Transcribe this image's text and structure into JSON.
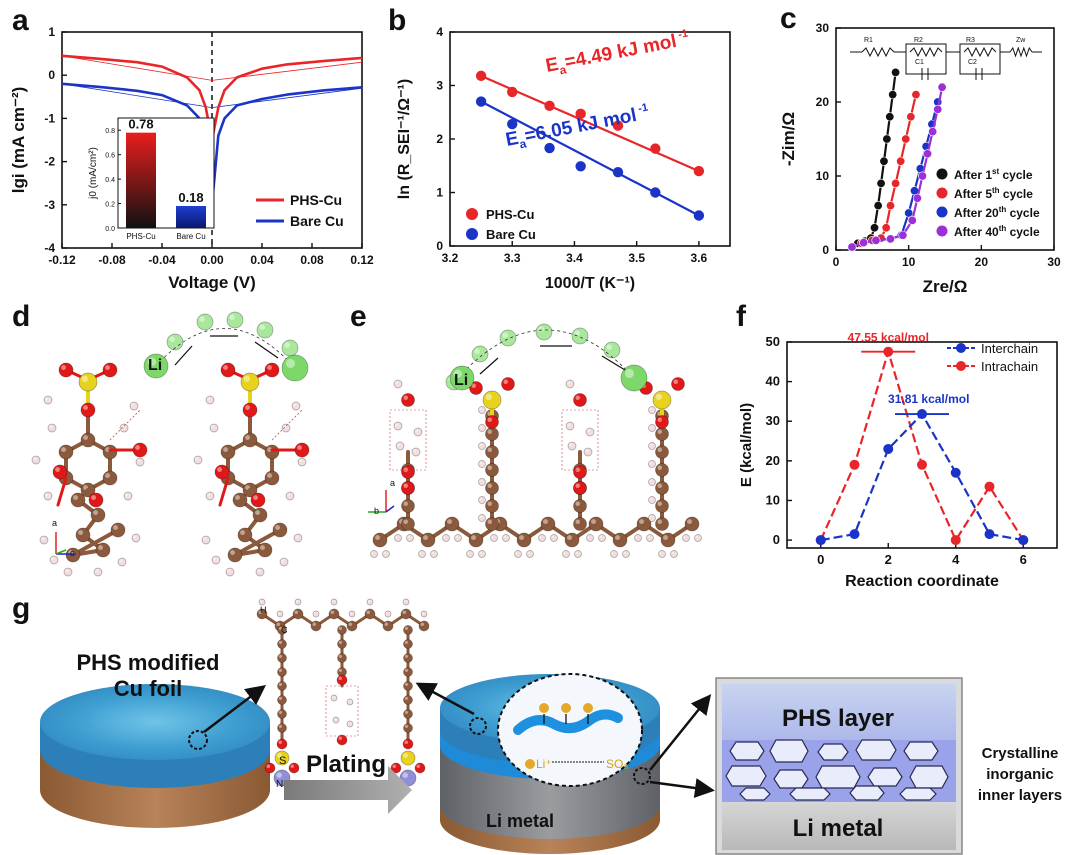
{
  "panel_labels": {
    "a": "a",
    "b": "b",
    "c": "c",
    "d": "d",
    "e": "e",
    "f": "f",
    "g": "g"
  },
  "chart_data": [
    {
      "id": "a",
      "type": "line",
      "xlabel": "Voltage (V)",
      "ylabel": "lgi (mA cm⁻²)",
      "xlim": [
        -0.12,
        0.12
      ],
      "ylim": [
        -4,
        1
      ],
      "xticks": [
        "-0.12",
        "-0.08",
        "-0.04",
        "0.00",
        "0.04",
        "0.08",
        "0.12"
      ],
      "yticks": [
        "-4",
        "-3",
        "-2",
        "-1",
        "0",
        "1"
      ],
      "legend_position": "bottom-right",
      "series": [
        {
          "name": "PHS-Cu",
          "color": "#e8262a",
          "x": [
            -0.12,
            -0.09,
            -0.06,
            -0.04,
            -0.02,
            -0.01,
            -0.005,
            0.0,
            0.005,
            0.01,
            0.02,
            0.04,
            0.06,
            0.09,
            0.12
          ],
          "y": [
            0.45,
            0.38,
            0.3,
            0.2,
            -0.05,
            -0.35,
            -0.75,
            -1.5,
            -0.75,
            -0.35,
            -0.05,
            0.15,
            0.25,
            0.33,
            0.4
          ]
        },
        {
          "name": "Bare Cu",
          "color": "#1a34c8",
          "x": [
            -0.12,
            -0.09,
            -0.06,
            -0.04,
            -0.02,
            -0.01,
            -0.005,
            0.0,
            0.005,
            0.01,
            0.02,
            0.04,
            0.06,
            0.09,
            0.12
          ],
          "y": [
            -0.2,
            -0.27,
            -0.36,
            -0.46,
            -0.7,
            -1.0,
            -1.4,
            -3.0,
            -1.4,
            -1.0,
            -0.7,
            -0.55,
            -0.45,
            -0.35,
            -0.28
          ]
        }
      ],
      "inset": {
        "type": "bar",
        "ylabel": "j0 (mA/cm²)",
        "ylim": [
          0,
          0.9
        ],
        "yticks": [
          "0.0",
          "0.2",
          "0.4",
          "0.6",
          "0.8"
        ],
        "categories": [
          "PHS-Cu",
          "Bare Cu"
        ],
        "values": [
          0.78,
          0.18
        ],
        "value_labels": [
          "0.78",
          "0.18"
        ],
        "colors": [
          "#e81e1e",
          "#1f3fd0"
        ]
      }
    },
    {
      "id": "b",
      "type": "scatter",
      "xlabel": "1000/T (K⁻¹)",
      "ylabel": "ln (R_SEI⁻¹/Ω⁻¹)",
      "xlim": [
        3.2,
        3.65
      ],
      "ylim": [
        0,
        4
      ],
      "xticks": [
        "3.2",
        "3.3",
        "3.4",
        "3.5",
        "3.6"
      ],
      "yticks": [
        "0",
        "1",
        "2",
        "3",
        "4"
      ],
      "legend_position": "bottom-left",
      "series": [
        {
          "name": "PHS-Cu",
          "color": "#e8262a",
          "x": [
            3.25,
            3.3,
            3.36,
            3.41,
            3.47,
            3.53,
            3.6
          ],
          "y": [
            3.18,
            2.88,
            2.62,
            2.47,
            2.25,
            1.82,
            1.4
          ],
          "fit": [
            [
              3.25,
              3.18
            ],
            [
              3.6,
              1.4
            ]
          ]
        },
        {
          "name": "Bare Cu",
          "color": "#1a34c8",
          "x": [
            3.25,
            3.3,
            3.36,
            3.41,
            3.47,
            3.53,
            3.6
          ],
          "y": [
            2.7,
            2.28,
            1.83,
            1.49,
            1.38,
            1.0,
            0.57
          ],
          "fit": [
            [
              3.25,
              2.7
            ],
            [
              3.6,
              0.57
            ]
          ]
        }
      ],
      "annotations": [
        {
          "text": "E",
          "sub": "a",
          "rest": "=4.49 kJ mol",
          "sup": "-1",
          "color": "#e8262a"
        },
        {
          "text": "E",
          "sub": "a",
          "rest": "=6.05 kJ mol",
          "sup": "-1",
          "color": "#1a34c8"
        }
      ]
    },
    {
      "id": "c",
      "type": "scatter",
      "xlabel": "Z_re/Ω",
      "ylabel": "-Z_im/Ω",
      "xlim": [
        0,
        30
      ],
      "ylim": [
        0,
        30
      ],
      "xticks": [
        "0",
        "10",
        "20",
        "30"
      ],
      "yticks": [
        "0",
        "10",
        "20",
        "30"
      ],
      "legend_position": "bottom-right",
      "circuit_labels": [
        "R1",
        "R2",
        "R3",
        "Zw",
        "C1",
        "C2"
      ],
      "series": [
        {
          "name": "After 1st cycle",
          "label": "After 1",
          "sup": "st",
          "tail": " cycle",
          "color": "#111111",
          "x": [
            2.2,
            3.0,
            4.0,
            4.8,
            5.3,
            5.8,
            6.2,
            6.6,
            7.0,
            7.4,
            7.8,
            8.2
          ],
          "y": [
            0.4,
            0.9,
            1.2,
            1.6,
            3.0,
            6.0,
            9.0,
            12.0,
            15.0,
            18.0,
            21.0,
            24.0
          ]
        },
        {
          "name": "After 5th cycle",
          "label": "After 5",
          "sup": "th",
          "tail": " cycle",
          "color": "#e8262a",
          "x": [
            2.2,
            3.5,
            5.0,
            6.2,
            6.9,
            7.5,
            8.2,
            8.9,
            9.6,
            10.3,
            11.0
          ],
          "y": [
            0.4,
            0.9,
            1.3,
            1.6,
            3.0,
            6.0,
            9.0,
            12.0,
            15.0,
            18.0,
            21.0
          ]
        },
        {
          "name": "After 20th cycle",
          "label": "After 20",
          "sup": "th",
          "tail": " cycle",
          "color": "#1a34c8",
          "x": [
            2.2,
            3.8,
            5.5,
            7.5,
            9.0,
            10.0,
            10.8,
            11.6,
            12.4,
            13.2,
            14.0
          ],
          "y": [
            0.4,
            1.0,
            1.3,
            1.5,
            2.0,
            5.0,
            8.0,
            11.0,
            14.0,
            17.0,
            20.0
          ]
        },
        {
          "name": "After 40th cycle",
          "label": "After 40",
          "sup": "th",
          "tail": " cycle",
          "color": "#9b30d9",
          "x": [
            2.2,
            3.8,
            5.5,
            7.5,
            9.2,
            10.5,
            11.2,
            11.9,
            12.6,
            13.3,
            14.0,
            14.6
          ],
          "y": [
            0.4,
            1.0,
            1.3,
            1.5,
            2.0,
            4.0,
            7.0,
            10.0,
            13.0,
            16.0,
            19.0,
            22.0
          ]
        }
      ]
    },
    {
      "id": "f",
      "type": "line",
      "xlabel": "Reaction coordinate",
      "ylabel": "E (kcal/mol)",
      "xlim": [
        -1,
        7
      ],
      "ylim": [
        -2,
        50
      ],
      "xticks": [
        "0",
        "2",
        "4",
        "6"
      ],
      "yticks": [
        "0",
        "10",
        "20",
        "30",
        "40",
        "50"
      ],
      "legend_position": "top-right",
      "series": [
        {
          "name": "Interchain",
          "color": "#1a34c8",
          "x": [
            0,
            1,
            2,
            3,
            4,
            5,
            6
          ],
          "y": [
            0,
            1.5,
            23,
            31.81,
            17,
            1.5,
            0
          ]
        },
        {
          "name": "Intrachain",
          "color": "#e8262a",
          "x": [
            0,
            1,
            2,
            3,
            4,
            5,
            6
          ],
          "y": [
            0,
            19,
            47.55,
            19,
            0,
            13.5,
            0
          ]
        }
      ],
      "annotations": [
        "47.55 kcal/mol",
        "31.81 kcal/mol"
      ]
    }
  ],
  "structure_d": {
    "label": "Li",
    "axes": [
      "a",
      "c"
    ]
  },
  "structure_e": {
    "label": "Li",
    "axes": [
      "a",
      "b"
    ]
  },
  "schematic_g": {
    "foil_label_1": "PHS modified",
    "foil_label_2": "Cu foil",
    "plating": "Plating",
    "li_metal_small": "Li metal",
    "li_ion": "Li⁺",
    "so3": "SO₃",
    "phs_layer": "PHS layer",
    "li_metal_big": "Li metal",
    "crystalline_1": "Crystalline",
    "crystalline_2": "inorganic",
    "crystalline_3": "inner layers",
    "atom_h": "H",
    "atom_c": "C",
    "atom_s": "S",
    "atom_na": "Na"
  }
}
